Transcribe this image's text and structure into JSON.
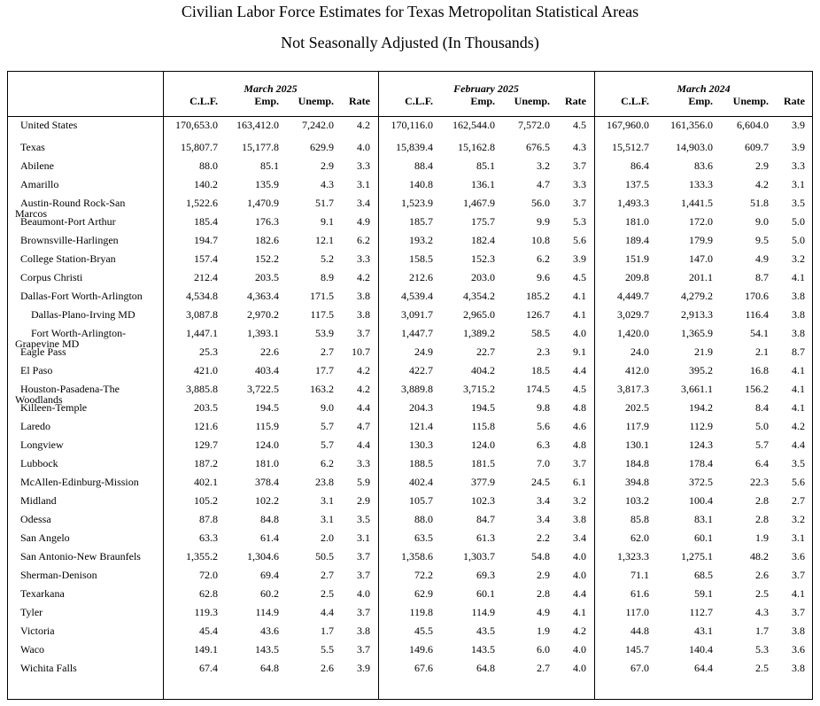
{
  "header": {
    "title": "Civilian Labor Force Estimates for Texas Metropolitan Statistical Areas",
    "subtitle": "Not Seasonally Adjusted (In Thousands)"
  },
  "table": {
    "groups": [
      {
        "label": "March 2025",
        "columns": [
          "C.L.F.",
          "Emp.",
          "Unemp.",
          "Rate"
        ]
      },
      {
        "label": "February 2025",
        "columns": [
          "C.L.F.",
          "Emp.",
          "Unemp.",
          "Rate"
        ]
      },
      {
        "label": "March 2024",
        "columns": [
          "C.L.F.",
          "Emp.",
          "Unemp.",
          "Rate"
        ]
      }
    ],
    "rows": [
      {
        "name": "United States",
        "cells": [
          "170,653.0",
          "163,412.0",
          "7,242.0",
          "4.2",
          "170,116.0",
          "162,544.0",
          "7,572.0",
          "4.5",
          "167,960.0",
          "161,356.0",
          "6,604.0",
          "3.9"
        ]
      },
      {
        "name": "Texas",
        "cells": [
          "15,807.7",
          "15,177.8",
          "629.9",
          "4.0",
          "15,839.4",
          "15,162.8",
          "676.5",
          "4.3",
          "15,512.7",
          "14,903.0",
          "609.7",
          "3.9"
        ]
      },
      {
        "name": "Abilene",
        "cells": [
          "88.0",
          "85.1",
          "2.9",
          "3.3",
          "88.4",
          "85.1",
          "3.2",
          "3.7",
          "86.4",
          "83.6",
          "2.9",
          "3.3"
        ]
      },
      {
        "name": "Amarillo",
        "cells": [
          "140.2",
          "135.9",
          "4.3",
          "3.1",
          "140.8",
          "136.1",
          "4.7",
          "3.3",
          "137.5",
          "133.3",
          "4.2",
          "3.1"
        ]
      },
      {
        "name": "Austin-Round Rock-San Marcos",
        "cells": [
          "1,522.6",
          "1,470.9",
          "51.7",
          "3.4",
          "1,523.9",
          "1,467.9",
          "56.0",
          "3.7",
          "1,493.3",
          "1,441.5",
          "51.8",
          "3.5"
        ]
      },
      {
        "name": "Beaumont-Port Arthur",
        "cells": [
          "185.4",
          "176.3",
          "9.1",
          "4.9",
          "185.7",
          "175.7",
          "9.9",
          "5.3",
          "181.0",
          "172.0",
          "9.0",
          "5.0"
        ]
      },
      {
        "name": "Brownsville-Harlingen",
        "cells": [
          "194.7",
          "182.6",
          "12.1",
          "6.2",
          "193.2",
          "182.4",
          "10.8",
          "5.6",
          "189.4",
          "179.9",
          "9.5",
          "5.0"
        ]
      },
      {
        "name": "College Station-Bryan",
        "cells": [
          "157.4",
          "152.2",
          "5.2",
          "3.3",
          "158.5",
          "152.3",
          "6.2",
          "3.9",
          "151.9",
          "147.0",
          "4.9",
          "3.2"
        ]
      },
      {
        "name": "Corpus Christi",
        "cells": [
          "212.4",
          "203.5",
          "8.9",
          "4.2",
          "212.6",
          "203.0",
          "9.6",
          "4.5",
          "209.8",
          "201.1",
          "8.7",
          "4.1"
        ]
      },
      {
        "name": "Dallas-Fort Worth-Arlington",
        "cells": [
          "4,534.8",
          "4,363.4",
          "171.5",
          "3.8",
          "4,539.4",
          "4,354.2",
          "185.2",
          "4.1",
          "4,449.7",
          "4,279.2",
          "170.6",
          "3.8"
        ]
      },
      {
        "name": "Dallas-Plano-Irving MD",
        "indent": true,
        "cells": [
          "3,087.8",
          "2,970.2",
          "117.5",
          "3.8",
          "3,091.7",
          "2,965.0",
          "126.7",
          "4.1",
          "3,029.7",
          "2,913.3",
          "116.4",
          "3.8"
        ]
      },
      {
        "name": "Fort Worth-Arlington-Grapevine MD",
        "indent": true,
        "cells": [
          "1,447.1",
          "1,393.1",
          "53.9",
          "3.7",
          "1,447.7",
          "1,389.2",
          "58.5",
          "4.0",
          "1,420.0",
          "1,365.9",
          "54.1",
          "3.8"
        ]
      },
      {
        "name": "Eagle Pass",
        "cells": [
          "25.3",
          "22.6",
          "2.7",
          "10.7",
          "24.9",
          "22.7",
          "2.3",
          "9.1",
          "24.0",
          "21.9",
          "2.1",
          "8.7"
        ]
      },
      {
        "name": "El Paso",
        "cells": [
          "421.0",
          "403.4",
          "17.7",
          "4.2",
          "422.7",
          "404.2",
          "18.5",
          "4.4",
          "412.0",
          "395.2",
          "16.8",
          "4.1"
        ]
      },
      {
        "name": "Houston-Pasadena-The Woodlands",
        "cells": [
          "3,885.8",
          "3,722.5",
          "163.2",
          "4.2",
          "3,889.8",
          "3,715.2",
          "174.5",
          "4.5",
          "3,817.3",
          "3,661.1",
          "156.2",
          "4.1"
        ]
      },
      {
        "name": "Killeen-Temple",
        "cells": [
          "203.5",
          "194.5",
          "9.0",
          "4.4",
          "204.3",
          "194.5",
          "9.8",
          "4.8",
          "202.5",
          "194.2",
          "8.4",
          "4.1"
        ]
      },
      {
        "name": "Laredo",
        "cells": [
          "121.6",
          "115.9",
          "5.7",
          "4.7",
          "121.4",
          "115.8",
          "5.6",
          "4.6",
          "117.9",
          "112.9",
          "5.0",
          "4.2"
        ]
      },
      {
        "name": "Longview",
        "cells": [
          "129.7",
          "124.0",
          "5.7",
          "4.4",
          "130.3",
          "124.0",
          "6.3",
          "4.8",
          "130.1",
          "124.3",
          "5.7",
          "4.4"
        ]
      },
      {
        "name": "Lubbock",
        "cells": [
          "187.2",
          "181.0",
          "6.2",
          "3.3",
          "188.5",
          "181.5",
          "7.0",
          "3.7",
          "184.8",
          "178.4",
          "6.4",
          "3.5"
        ]
      },
      {
        "name": "McAllen-Edinburg-Mission",
        "cells": [
          "402.1",
          "378.4",
          "23.8",
          "5.9",
          "402.4",
          "377.9",
          "24.5",
          "6.1",
          "394.8",
          "372.5",
          "22.3",
          "5.6"
        ]
      },
      {
        "name": "Midland",
        "cells": [
          "105.2",
          "102.2",
          "3.1",
          "2.9",
          "105.7",
          "102.3",
          "3.4",
          "3.2",
          "103.2",
          "100.4",
          "2.8",
          "2.7"
        ]
      },
      {
        "name": "Odessa",
        "cells": [
          "87.8",
          "84.8",
          "3.1",
          "3.5",
          "88.0",
          "84.7",
          "3.4",
          "3.8",
          "85.8",
          "83.1",
          "2.8",
          "3.2"
        ]
      },
      {
        "name": "San Angelo",
        "cells": [
          "63.3",
          "61.4",
          "2.0",
          "3.1",
          "63.5",
          "61.3",
          "2.2",
          "3.4",
          "62.0",
          "60.1",
          "1.9",
          "3.1"
        ]
      },
      {
        "name": "San Antonio-New Braunfels",
        "cells": [
          "1,355.2",
          "1,304.6",
          "50.5",
          "3.7",
          "1,358.6",
          "1,303.7",
          "54.8",
          "4.0",
          "1,323.3",
          "1,275.1",
          "48.2",
          "3.6"
        ]
      },
      {
        "name": "Sherman-Denison",
        "cells": [
          "72.0",
          "69.4",
          "2.7",
          "3.7",
          "72.2",
          "69.3",
          "2.9",
          "4.0",
          "71.1",
          "68.5",
          "2.6",
          "3.7"
        ]
      },
      {
        "name": "Texarkana",
        "cells": [
          "62.8",
          "60.2",
          "2.5",
          "4.0",
          "62.9",
          "60.1",
          "2.8",
          "4.4",
          "61.6",
          "59.1",
          "2.5",
          "4.1"
        ]
      },
      {
        "name": "Tyler",
        "cells": [
          "119.3",
          "114.9",
          "4.4",
          "3.7",
          "119.8",
          "114.9",
          "4.9",
          "4.1",
          "117.0",
          "112.7",
          "4.3",
          "3.7"
        ]
      },
      {
        "name": "Victoria",
        "cells": [
          "45.4",
          "43.6",
          "1.7",
          "3.8",
          "45.5",
          "43.5",
          "1.9",
          "4.2",
          "44.8",
          "43.1",
          "1.7",
          "3.8"
        ]
      },
      {
        "name": "Waco",
        "cells": [
          "149.1",
          "143.5",
          "5.5",
          "3.7",
          "149.6",
          "143.5",
          "6.0",
          "4.0",
          "145.7",
          "140.4",
          "5.3",
          "3.6"
        ]
      },
      {
        "name": "Wichita Falls",
        "cells": [
          "67.4",
          "64.8",
          "2.6",
          "3.9",
          "67.6",
          "64.8",
          "2.7",
          "4.0",
          "67.0",
          "64.4",
          "2.5",
          "3.8"
        ]
      }
    ]
  }
}
